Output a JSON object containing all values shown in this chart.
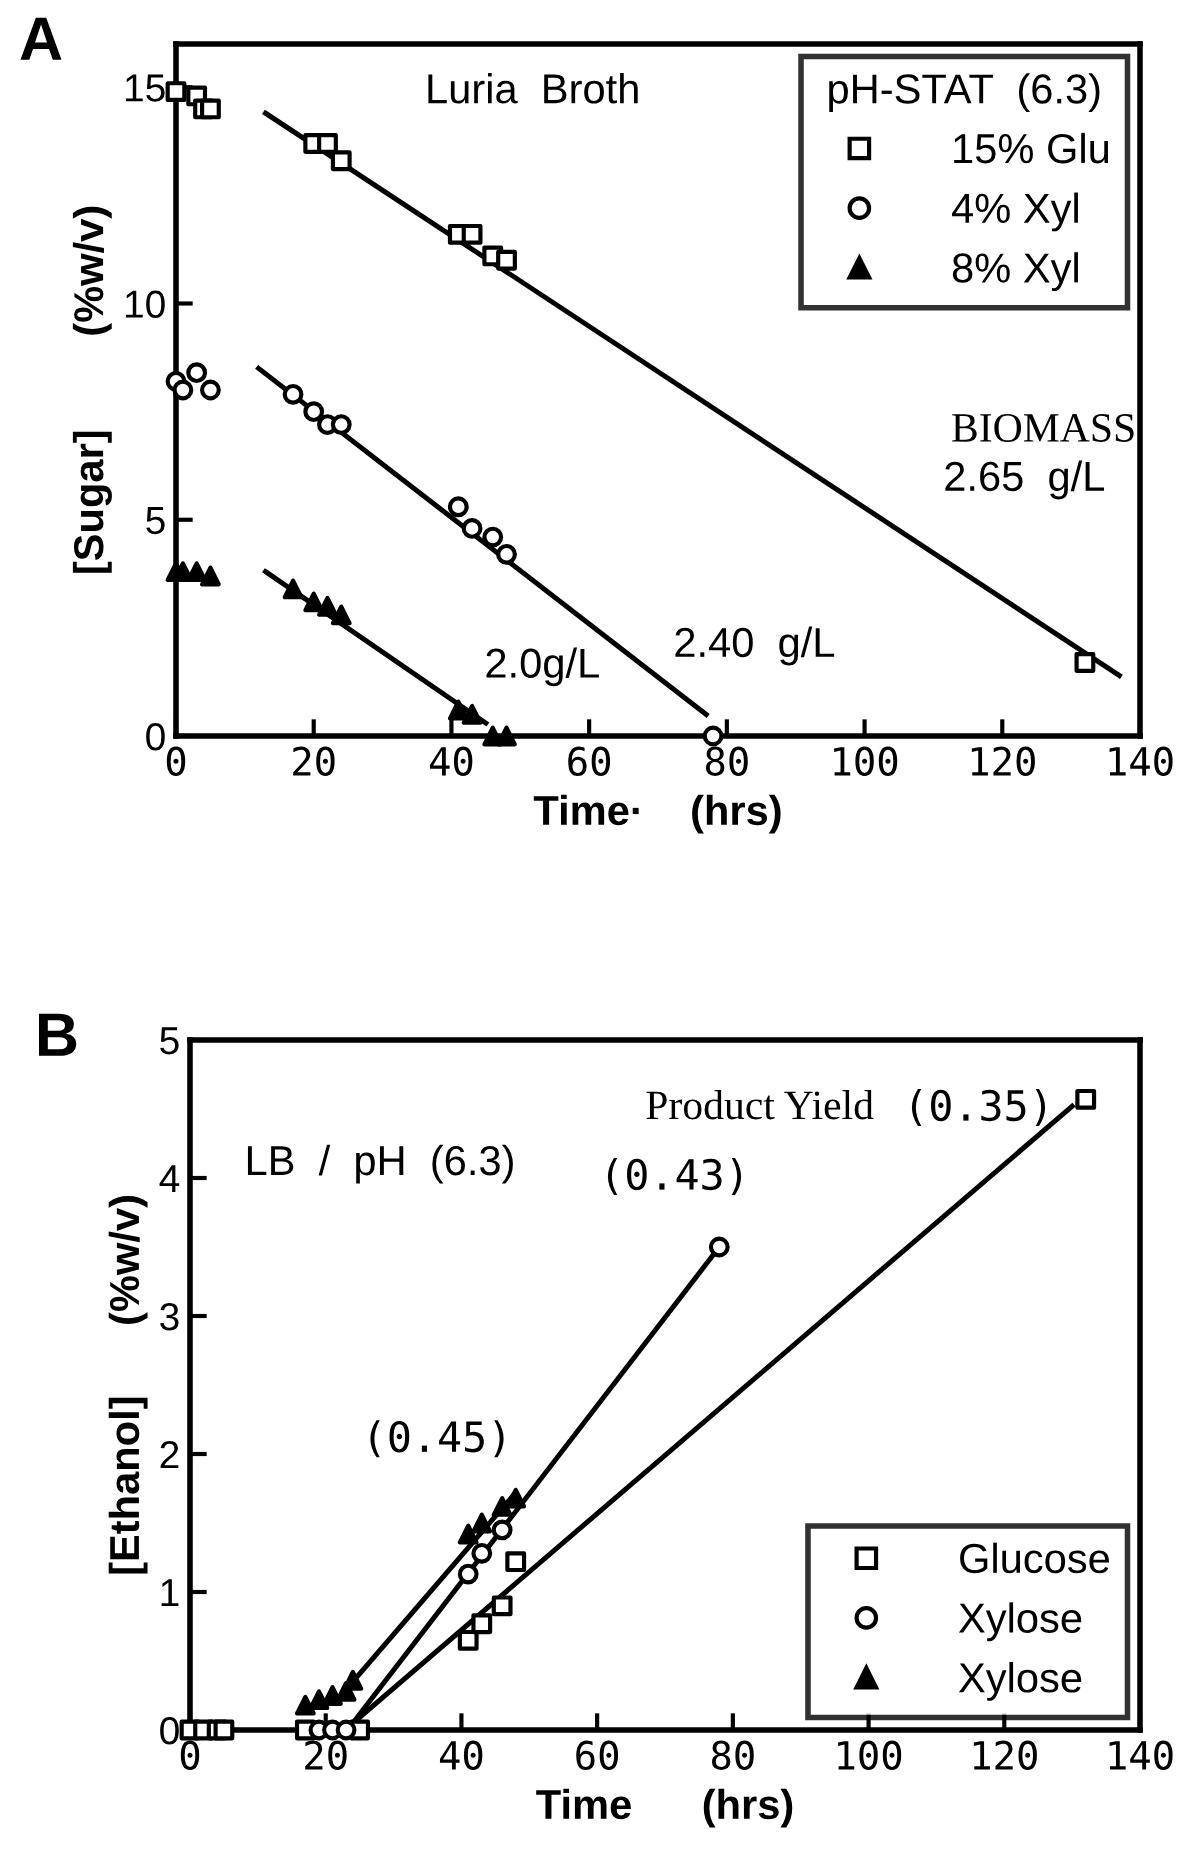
{
  "chart_data": [
    {
      "type": "scatter",
      "title": "A",
      "xlabel": "Time·    (hrs)",
      "ylabel": "[Sugar]        (%w/v)",
      "legend_title": "pH-STAT  (6.3)",
      "legend": "top right",
      "xlim": [
        0,
        140
      ],
      "xticks": [
        0,
        20,
        40,
        60,
        80,
        100,
        120,
        140
      ],
      "ylim": [
        0,
        16
      ],
      "yticks": [
        0,
        5,
        10,
        15
      ],
      "grid": false,
      "annotations": [
        "Luria  Broth",
        "BIOMASS",
        "2.65  g/L",
        "2.40  g/L",
        "2.0g/L"
      ],
      "series": [
        {
          "name": "15% Glu",
          "color": "#000000",
          "marker": "square",
          "x": [
            0,
            3,
            4,
            5,
            20,
            22,
            24,
            41,
            43,
            46,
            48,
            132
          ],
          "values": [
            14.9,
            14.8,
            14.5,
            14.5,
            13.7,
            13.7,
            13.3,
            11.6,
            11.6,
            11.1,
            11.0,
            1.7
          ]
        },
        {
          "name": "4% Xyl",
          "color": "#000000",
          "marker": "circle",
          "x": [
            0,
            1,
            3,
            5,
            17,
            20,
            22,
            24,
            41,
            43,
            46,
            48,
            78
          ],
          "values": [
            8.2,
            8.0,
            8.4,
            8.0,
            7.9,
            7.5,
            7.2,
            7.2,
            5.3,
            4.8,
            4.6,
            4.2,
            0.0
          ]
        },
        {
          "name": "8% Xyl",
          "color": "#000000",
          "marker": "triangle",
          "x": [
            0,
            1,
            3,
            5,
            17,
            20,
            22,
            24,
            41,
            43,
            46,
            48
          ],
          "values": [
            3.8,
            3.8,
            3.8,
            3.7,
            3.4,
            3.1,
            3.0,
            2.8,
            0.6,
            0.5,
            0.0,
            0.0
          ]
        },
        {
          "type": "line",
          "color": "#000000",
          "x": [
            13,
            137
          ],
          "values": [
            14.4,
            1.4
          ]
        },
        {
          "type": "line",
          "color": "#000000",
          "x": [
            12,
            77
          ],
          "values": [
            8.5,
            0.5
          ]
        },
        {
          "type": "line",
          "color": "#000000",
          "x": [
            13,
            45
          ],
          "values": [
            3.8,
            0.3
          ]
        }
      ]
    },
    {
      "type": "scatter",
      "title": "B",
      "xlabel": "Time      (hrs)",
      "ylabel": "[Ethanol]      (%w/v)",
      "legend": "bottom right",
      "xlim": [
        0,
        140
      ],
      "xticks": [
        0,
        20,
        40,
        60,
        80,
        100,
        120,
        140
      ],
      "ylim": [
        0,
        5
      ],
      "yticks": [
        0,
        1,
        2,
        3,
        4,
        5
      ],
      "grid": false,
      "annotations": [
        "LB  /  pH  (6.3)",
        "Product Yield",
        "(0.35)",
        "(0.43)",
        "(0.45)"
      ],
      "series": [
        {
          "name": "Glucose",
          "color": "#000000",
          "marker": "square",
          "x": [
            0,
            2,
            4,
            5,
            17,
            25,
            41,
            43,
            46,
            48,
            132
          ],
          "values": [
            0,
            0,
            0,
            0,
            0,
            0,
            0.65,
            0.77,
            0.9,
            1.22,
            4.57
          ]
        },
        {
          "name": "Xylose",
          "color": "#000000",
          "marker": "circle",
          "x": [
            19,
            21,
            23,
            41,
            43,
            46,
            78
          ],
          "values": [
            0,
            0,
            0,
            1.13,
            1.28,
            1.45,
            3.5
          ]
        },
        {
          "name": "Xylose",
          "color": "#000000",
          "marker": "triangle",
          "x": [
            17,
            19,
            21,
            23,
            24,
            41,
            43,
            46,
            48
          ],
          "values": [
            0.18,
            0.22,
            0.25,
            0.28,
            0.36,
            1.42,
            1.5,
            1.62,
            1.68
          ]
        },
        {
          "type": "line",
          "color": "#000000",
          "x": [
            24,
            130
          ],
          "values": [
            0.05,
            4.52
          ]
        },
        {
          "type": "line",
          "color": "#000000",
          "x": [
            24,
            78
          ],
          "values": [
            0.05,
            3.5
          ]
        },
        {
          "type": "line",
          "color": "#000000",
          "x": [
            24,
            48
          ],
          "values": [
            0.35,
            1.72
          ]
        }
      ]
    }
  ]
}
